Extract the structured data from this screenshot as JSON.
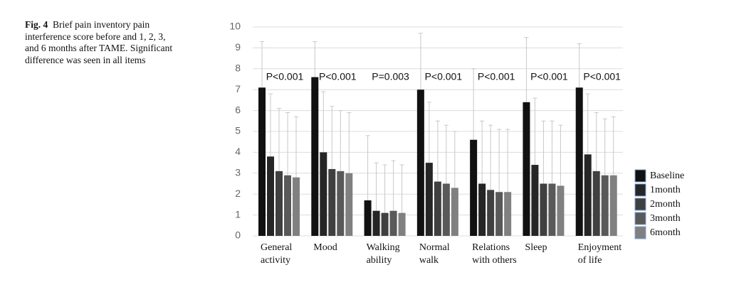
{
  "caption": {
    "label": "Fig. 4",
    "text": "Brief pain inventory pain interference score before and 1, 2, 3, and 6 months after TAME. Significant difference was seen in all items"
  },
  "chart_data": {
    "type": "bar",
    "categories": [
      "General\nactivity",
      "Mood",
      "Walking\nability",
      "Normal\nwalk",
      "Relations\nwith others",
      "Sleep",
      "Enjoyment\nof life"
    ],
    "p_values": [
      "P<0.001",
      "P<0.001",
      "P=0.003",
      "P<0.001",
      "P<0.001",
      "P<0.001",
      "P<0.001"
    ],
    "series": [
      {
        "name": "Baseline",
        "color": "#111111",
        "values": [
          7.1,
          7.6,
          1.7,
          7.0,
          4.6,
          6.4,
          7.1
        ],
        "errors": [
          2.2,
          1.7,
          3.1,
          2.7,
          3.4,
          3.1,
          2.1
        ]
      },
      {
        "name": "1month",
        "color": "#262626",
        "values": [
          3.8,
          4.0,
          1.2,
          3.5,
          2.5,
          3.4,
          3.9
        ],
        "errors": [
          3.0,
          2.9,
          2.3,
          2.9,
          3.0,
          3.2,
          2.9
        ]
      },
      {
        "name": "2month",
        "color": "#404040",
        "values": [
          3.1,
          3.2,
          1.1,
          2.6,
          2.2,
          2.5,
          3.1
        ],
        "errors": [
          3.0,
          3.0,
          2.3,
          2.9,
          3.1,
          3.0,
          2.8
        ]
      },
      {
        "name": "3month",
        "color": "#595959",
        "values": [
          2.9,
          3.1,
          1.2,
          2.5,
          2.1,
          2.5,
          2.9
        ],
        "errors": [
          3.0,
          2.9,
          2.4,
          2.8,
          3.0,
          3.0,
          2.7
        ]
      },
      {
        "name": "6month",
        "color": "#808080",
        "values": [
          2.8,
          3.0,
          1.1,
          2.3,
          2.1,
          2.4,
          2.9
        ],
        "errors": [
          2.9,
          2.9,
          2.3,
          2.7,
          3.0,
          2.9,
          2.8
        ]
      }
    ],
    "ylim": [
      0,
      10
    ],
    "yticks": [
      0,
      1,
      2,
      3,
      4,
      5,
      6,
      7,
      8,
      9,
      10
    ],
    "grid": true,
    "legend": "right"
  }
}
